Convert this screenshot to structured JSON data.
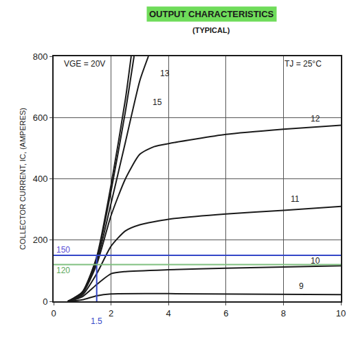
{
  "chart_data": {
    "type": "line",
    "title": "OUTPUT CHARACTERISTICS",
    "subtitle": "(TYPICAL)",
    "y_label": "COLLECTOR CURRENT, IC, (AMPERES)",
    "xlim": [
      0,
      10
    ],
    "xticks": [
      0,
      2,
      4,
      6,
      8,
      10
    ],
    "ylim": [
      0,
      800
    ],
    "yticks": [
      0,
      200,
      400,
      600,
      800
    ],
    "grid": true,
    "series": [
      {
        "color": "#1a1a1a",
        "line_style": "solid",
        "x": [
          0.5,
          1,
          1.5,
          2,
          4,
          10
        ],
        "values": [
          0,
          5,
          18,
          24,
          25,
          22
        ]
      },
      {
        "color": "#1a1a1a",
        "line_style": "solid",
        "x": [
          0.5,
          1,
          1.5,
          2,
          2.5,
          4,
          6,
          10
        ],
        "values": [
          0,
          15,
          55,
          90,
          97,
          103,
          108,
          116
        ]
      },
      {
        "color": "#1a1a1a",
        "line_style": "solid",
        "x": [
          0.5,
          1,
          1.5,
          2,
          2.5,
          3,
          4,
          6,
          8,
          10
        ],
        "values": [
          0,
          20,
          90,
          180,
          230,
          250,
          268,
          285,
          297,
          310
        ]
      },
      {
        "color": "#1a1a1a",
        "line_style": "solid",
        "x": [
          0.5,
          1,
          1.5,
          2,
          2.5,
          3,
          3.5,
          4,
          6,
          8,
          10
        ],
        "values": [
          0,
          25,
          120,
          280,
          400,
          480,
          505,
          515,
          545,
          562,
          575
        ]
      },
      {
        "color": "#1a1a1a",
        "line_style": "solid",
        "x": [
          0.5,
          1,
          1.5,
          2,
          2.5,
          3,
          3.3
        ],
        "values": [
          0,
          30,
          130,
          320,
          520,
          720,
          800
        ]
      },
      {
        "color": "#1a1a1a",
        "line_style": "solid",
        "x": [
          0.5,
          1,
          1.5,
          2,
          2.5,
          2.8
        ],
        "values": [
          0,
          30,
          140,
          360,
          620,
          800
        ]
      },
      {
        "color": "#1a1a1a",
        "line_style": "solid",
        "x": [
          0.5,
          1,
          1.5,
          2,
          2.5,
          2.7
        ],
        "values": [
          0,
          30,
          145,
          380,
          660,
          800
        ]
      },
      {
        "color": "#3346c8",
        "line_style": "solid",
        "x": [
          0,
          10
        ],
        "values": [
          150,
          150
        ]
      },
      {
        "color": "#3346c8",
        "line_style": "solid",
        "x": [
          1.5,
          1.5
        ],
        "values": [
          0,
          150
        ]
      },
      {
        "color": "#7fbf7f",
        "line_style": "solid",
        "x": [
          0,
          10
        ],
        "values": [
          120,
          120
        ]
      }
    ],
    "annotations": [
      {
        "text": "VGE = 20V",
        "x": 0.3,
        "y": 775,
        "color": "#1a1a1a"
      },
      {
        "text": "TJ = 25°C",
        "x": 8.0,
        "y": 775,
        "color": "#1a1a1a"
      },
      {
        "text": "13",
        "x": 3.65,
        "y": 745,
        "color": "#1a1a1a"
      },
      {
        "text": "15",
        "x": 3.4,
        "y": 650,
        "color": "#1a1a1a"
      },
      {
        "text": "12",
        "x": 8.9,
        "y": 597,
        "color": "#1a1a1a"
      },
      {
        "text": "11",
        "x": 8.2,
        "y": 335,
        "color": "#1a1a1a"
      },
      {
        "text": "10",
        "x": 8.9,
        "y": 132,
        "color": "#1a1a1a"
      },
      {
        "text": "9",
        "x": 8.5,
        "y": 50,
        "color": "#1a1a1a"
      },
      {
        "text": "150",
        "x": 0.05,
        "y": 168,
        "color": "#5b4fd6"
      },
      {
        "text": "120",
        "x": 0.05,
        "y": 100,
        "color": "#5aa75a"
      },
      {
        "text": "1.5",
        "x": 1.5,
        "y": 0,
        "color": "#3346c8"
      }
    ]
  }
}
